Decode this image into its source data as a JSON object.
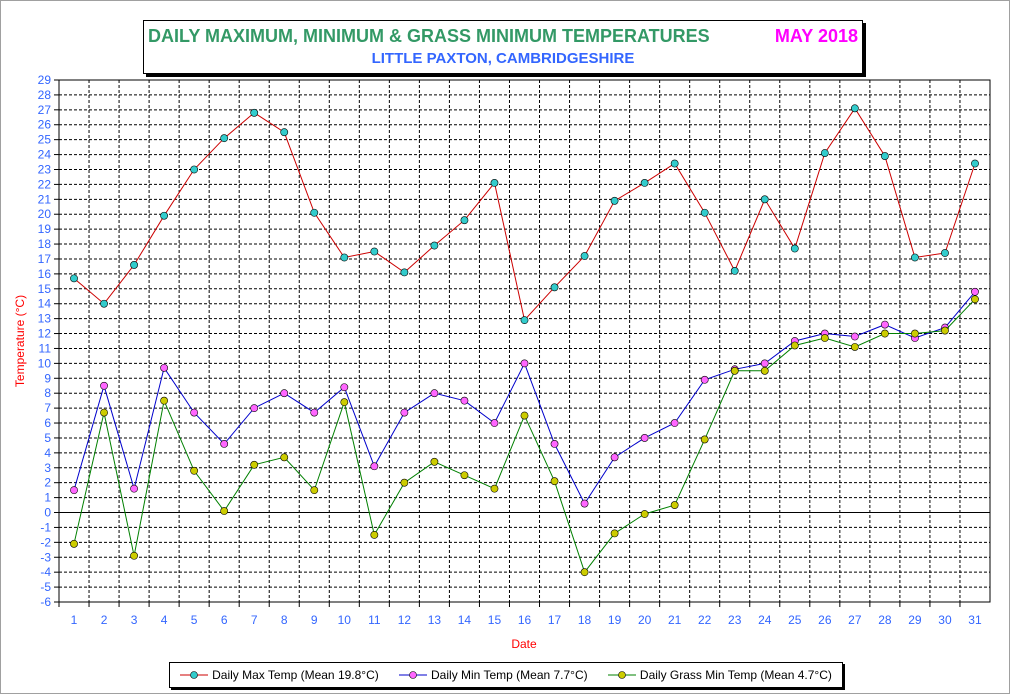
{
  "title": "DAILY MAXIMUM, MINIMUM & GRASS MINIMUM TEMPERATURES",
  "month": "MAY 2018",
  "subtitle": "LITTLE PAXTON, CAMBRIDGESHIRE",
  "colors": {
    "title": "#339966",
    "month": "#ff00ff",
    "subtitle": "#3366ff",
    "axis_label": "#ff0000",
    "tick_label": "#3366ff"
  },
  "chart_data": {
    "type": "line",
    "xlabel": "Date",
    "ylabel": "Temperature (°C)",
    "ylim": [
      -6,
      29
    ],
    "x": [
      1,
      2,
      3,
      4,
      5,
      6,
      7,
      8,
      9,
      10,
      11,
      12,
      13,
      14,
      15,
      16,
      17,
      18,
      19,
      20,
      21,
      22,
      23,
      24,
      25,
      26,
      27,
      28,
      29,
      30,
      31
    ],
    "grid": true,
    "legend_position": "bottom",
    "series": [
      {
        "name": "Daily Max Temp (Mean 19.8°C)",
        "line_color": "#cc0000",
        "marker_color": "#33cccc",
        "values": [
          15.7,
          14.0,
          16.6,
          19.9,
          23.0,
          25.1,
          26.8,
          25.5,
          20.1,
          17.1,
          17.5,
          16.1,
          17.9,
          19.6,
          22.1,
          12.9,
          15.1,
          17.2,
          20.9,
          22.1,
          23.4,
          20.1,
          16.2,
          21.0,
          17.7,
          24.1,
          27.1,
          23.9,
          17.1,
          17.4,
          23.4
        ]
      },
      {
        "name": "Daily Min Temp (Mean 7.7°C)",
        "line_color": "#0000cc",
        "marker_color": "#ff66ff",
        "values": [
          1.5,
          8.5,
          1.6,
          9.7,
          6.7,
          4.6,
          7.0,
          8.0,
          6.7,
          8.4,
          3.1,
          6.7,
          8.0,
          7.5,
          6.0,
          10.0,
          4.6,
          0.6,
          3.7,
          5.0,
          6.0,
          8.9,
          9.6,
          10.0,
          11.5,
          12.0,
          11.8,
          12.6,
          11.7,
          12.4,
          14.8
        ]
      },
      {
        "name": "Daily Grass Min Temp (Mean 4.7°C)",
        "line_color": "#008000",
        "marker_color": "#cccc00",
        "values": [
          -2.1,
          6.7,
          -2.9,
          7.5,
          2.8,
          0.1,
          3.2,
          3.7,
          1.5,
          7.4,
          -1.5,
          2.0,
          3.4,
          2.5,
          1.6,
          6.5,
          2.1,
          -4.0,
          -1.4,
          -0.1,
          0.5,
          4.9,
          9.5,
          9.5,
          11.2,
          11.7,
          11.1,
          12.0,
          12.0,
          12.2,
          14.3
        ]
      }
    ]
  }
}
